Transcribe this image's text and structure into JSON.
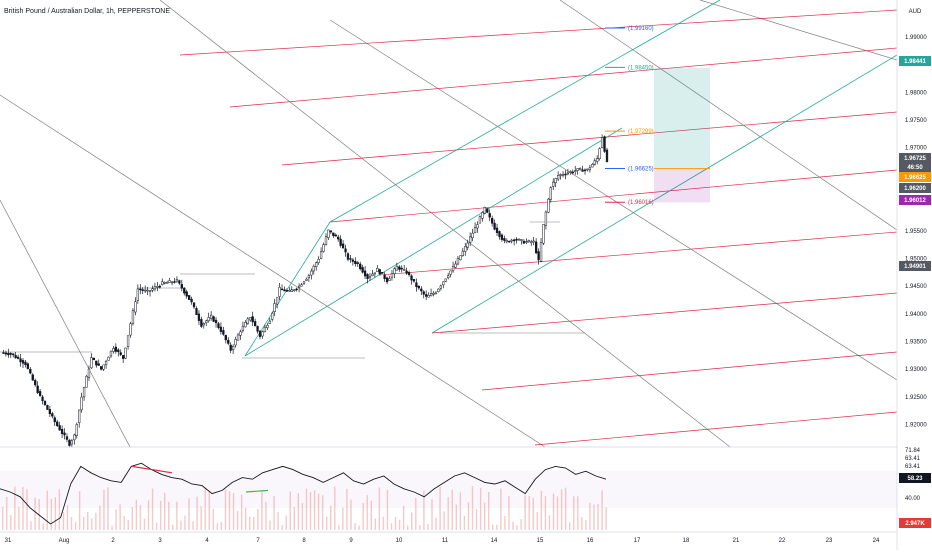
{
  "header": {
    "symbol_title": "British Pound / Australian Dollar, 1h, PEPPERSTONE"
  },
  "colors": {
    "background": "#ffffff",
    "candle": "#131722",
    "fork_gray": "#7f7f7f",
    "pitchfork_red": "#e0294a",
    "channel_green": "#22ab94",
    "target_teal": "#26a69a",
    "stop_purple": "#9c27b0",
    "entry_orange": "#ff9800",
    "level_blue": "#2962ff",
    "rsi_line": "#131722",
    "volume": "#ef9a9a"
  },
  "chart_data": [
    {
      "type": "candlestick",
      "title": "British Pound / Australian Dollar, 1h, PEPPERSTONE",
      "currency": "AUD",
      "x_tick_labels": [
        "31",
        "Aug",
        "2",
        "3",
        "4",
        "7",
        "8",
        "9",
        "10",
        "11",
        "14",
        "15",
        "16",
        "17",
        "18",
        "21",
        "22",
        "23",
        "24"
      ],
      "y_tick_labels": [
        "1.99000",
        "1.98000",
        "1.97500",
        "1.97000",
        "1.95500",
        "1.95000",
        "1.94500",
        "1.94000",
        "1.93500",
        "1.93000",
        "1.92500",
        "1.92000"
      ],
      "ylim": [
        1.9165,
        1.9945
      ],
      "price_path": [
        [
          0,
          1.933
        ],
        [
          4,
          1.9328
        ],
        [
          10,
          1.931
        ],
        [
          16,
          1.925
        ],
        [
          22,
          1.9205
        ],
        [
          28,
          1.9165
        ],
        [
          30,
          1.918
        ],
        [
          33,
          1.925
        ],
        [
          37,
          1.932
        ],
        [
          41,
          1.93
        ],
        [
          46,
          1.934
        ],
        [
          50,
          1.932
        ],
        [
          56,
          1.9445
        ],
        [
          60,
          1.944
        ],
        [
          66,
          1.9455
        ],
        [
          72,
          1.946
        ],
        [
          78,
          1.942
        ],
        [
          82,
          1.938
        ],
        [
          86,
          1.9395
        ],
        [
          90,
          1.937
        ],
        [
          94,
          1.9335
        ],
        [
          98,
          1.937
        ],
        [
          102,
          1.9395
        ],
        [
          106,
          1.936
        ],
        [
          110,
          1.939
        ],
        [
          114,
          1.9445
        ],
        [
          118,
          1.944
        ],
        [
          122,
          1.945
        ],
        [
          126,
          1.947
        ],
        [
          130,
          1.95
        ],
        [
          134,
          1.955
        ],
        [
          138,
          1.9535
        ],
        [
          142,
          1.95
        ],
        [
          146,
          1.949
        ],
        [
          150,
          1.9465
        ],
        [
          154,
          1.948
        ],
        [
          158,
          1.946
        ],
        [
          162,
          1.9485
        ],
        [
          166,
          1.9475
        ],
        [
          170,
          1.945
        ],
        [
          174,
          1.943
        ],
        [
          178,
          1.944
        ],
        [
          182,
          1.9465
        ],
        [
          186,
          1.949
        ],
        [
          190,
          1.952
        ],
        [
          194,
          1.9555
        ],
        [
          198,
          1.959
        ],
        [
          202,
          1.9555
        ],
        [
          206,
          1.953
        ],
        [
          210,
          1.9535
        ],
        [
          214,
          1.953
        ],
        [
          218,
          1.953
        ],
        [
          220,
          1.9495
        ],
        [
          222,
          1.956
        ],
        [
          225,
          1.963
        ],
        [
          228,
          1.965
        ],
        [
          232,
          1.9655
        ],
        [
          236,
          1.966
        ],
        [
          240,
          1.966
        ],
        [
          244,
          1.968
        ],
        [
          246,
          1.972
        ],
        [
          248,
          1.9672
        ]
      ],
      "last_price": "1.96725",
      "countdown": "46:50",
      "price_labels": [
        {
          "text": "1.98441",
          "color": "#26a69a"
        },
        {
          "text": "1.96725",
          "color": "#555963"
        },
        {
          "text": "46:50",
          "color": "#555963"
        },
        {
          "text": "1.96625",
          "color": "#ff9800"
        },
        {
          "text": "1.96200",
          "color": "#555963"
        },
        {
          "text": "1.96012",
          "color": "#9c27b0"
        },
        {
          "text": "1.94901",
          "color": "#555963"
        }
      ],
      "annotations": [
        {
          "text": "(1.99160)",
          "color": "#2962ff",
          "price": 1.9916
        },
        {
          "text": "(1.98450)",
          "color": "#22ab94",
          "price": 1.9845
        },
        {
          "text": "(1.97299)",
          "color": "#ff9800",
          "price": 1.97299
        },
        {
          "text": "(1.96625)",
          "color": "#2962ff",
          "price": 1.96625
        },
        {
          "text": "(1.96016)",
          "color": "#e0294a",
          "price": 1.96016
        }
      ],
      "position": {
        "target": 1.98441,
        "entry": 1.96625,
        "stop": 1.96012
      }
    },
    {
      "type": "line",
      "series": [
        {
          "name": "",
          "values": [
            52,
            50,
            47,
            40,
            35,
            30,
            34,
            55,
            66,
            62,
            59,
            57,
            56,
            66,
            68,
            64,
            61,
            59,
            58,
            55,
            54,
            49,
            51,
            56,
            59,
            58,
            62,
            64,
            66,
            64,
            61,
            59,
            56,
            59,
            62,
            57,
            55,
            58,
            60,
            55,
            52,
            50,
            47,
            52,
            56,
            60,
            62,
            59,
            56,
            55,
            57,
            53,
            49,
            58,
            64,
            66,
            65,
            61,
            63,
            60,
            58
          ]
        }
      ],
      "y_tick_labels": [
        "71.84",
        "63.41",
        "63.41",
        "40.00"
      ],
      "current_value": "58.23",
      "volume_label": "2.947K"
    }
  ]
}
